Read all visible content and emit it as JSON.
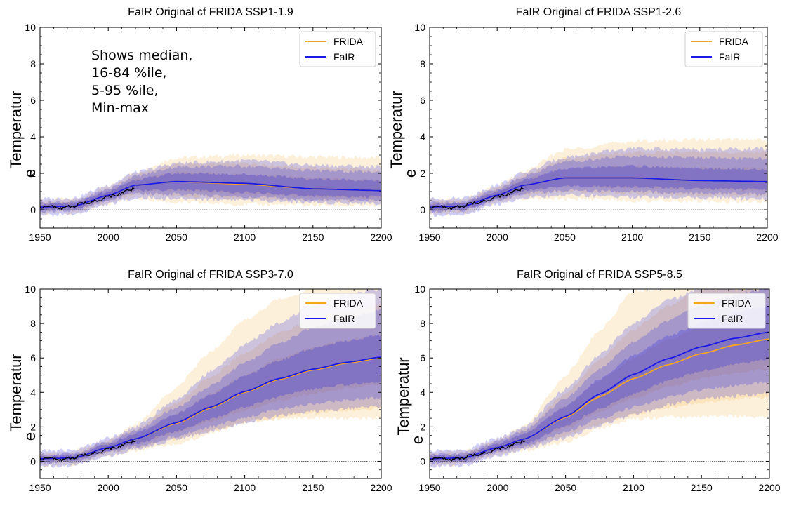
{
  "chart_data": [
    {
      "type": "area",
      "title": "FaIR Original cf FRIDA SSP1-1.9",
      "ylabel": "Temperatur\ne",
      "xlabel": "",
      "xlim": [
        1950,
        2200
      ],
      "ylim": [
        -1,
        10
      ],
      "xticks": [
        1950,
        2000,
        2050,
        2100,
        2150,
        2200
      ],
      "yticks": [
        0,
        2,
        4,
        6,
        8,
        10
      ],
      "legend": {
        "placement": "top-right",
        "entries": [
          "FRIDA",
          "FaIR"
        ]
      },
      "annotation": [
        "Shows median,",
        "16-84 %ile,",
        "5-95 %ile,",
        "Min-max"
      ],
      "series": [
        {
          "name": "FRIDA",
          "color": "#f5a623",
          "x": [
            1950,
            1975,
            2000,
            2020,
            2050,
            2100,
            2150,
            2200
          ],
          "median": [
            0.15,
            0.2,
            0.8,
            1.35,
            1.55,
            1.4,
            1.15,
            1.05
          ],
          "p16": [
            0.0,
            0.05,
            0.6,
            1.05,
            1.05,
            0.85,
            0.7,
            0.65
          ],
          "p84": [
            0.3,
            0.35,
            1.0,
            1.65,
            2.05,
            1.95,
            1.75,
            1.6
          ],
          "p5": [
            -0.1,
            -0.05,
            0.5,
            0.85,
            0.75,
            0.6,
            0.5,
            0.45
          ],
          "p95": [
            0.4,
            0.45,
            1.15,
            1.9,
            2.5,
            2.55,
            2.3,
            2.15
          ],
          "min": [
            -0.25,
            -0.2,
            0.35,
            0.6,
            0.4,
            0.3,
            0.25,
            0.2
          ],
          "max": [
            0.55,
            0.6,
            1.3,
            2.1,
            2.85,
            3.0,
            2.9,
            2.85
          ]
        },
        {
          "name": "FaIR",
          "color": "#1a1ae6",
          "x": [
            1950,
            1975,
            2000,
            2020,
            2050,
            2100,
            2150,
            2200
          ],
          "median": [
            0.15,
            0.2,
            0.8,
            1.35,
            1.55,
            1.45,
            1.15,
            1.05
          ],
          "p16": [
            0.0,
            0.05,
            0.6,
            1.05,
            1.1,
            0.95,
            0.75,
            0.7
          ],
          "p84": [
            0.3,
            0.35,
            1.0,
            1.65,
            2.0,
            1.95,
            1.7,
            1.6
          ],
          "p5": [
            -0.1,
            -0.05,
            0.5,
            0.9,
            0.85,
            0.7,
            0.55,
            0.5
          ],
          "p95": [
            0.4,
            0.45,
            1.15,
            1.85,
            2.35,
            2.4,
            2.15,
            2.05
          ],
          "min": [
            -0.3,
            -0.25,
            0.3,
            0.65,
            0.6,
            0.55,
            0.4,
            0.35
          ],
          "max": [
            0.6,
            0.65,
            1.35,
            2.05,
            2.55,
            2.7,
            2.45,
            2.35
          ]
        }
      ],
      "observed": {
        "name": "observed",
        "color": "#000000",
        "x": [
          1950,
          1955,
          1960,
          1965,
          1970,
          1975,
          1980,
          1985,
          1990,
          1995,
          2000,
          2005,
          2010,
          2015,
          2020
        ],
        "y": [
          0.1,
          0.25,
          0.15,
          0.05,
          0.2,
          0.15,
          0.4,
          0.35,
          0.5,
          0.55,
          0.75,
          0.8,
          0.9,
          1.05,
          1.2
        ]
      }
    },
    {
      "type": "area",
      "title": "FaIR Original cf FRIDA SSP1-2.6",
      "ylabel": "Temperatur\ne",
      "xlabel": "",
      "xlim": [
        1950,
        2200
      ],
      "ylim": [
        -1,
        10
      ],
      "xticks": [
        1950,
        2000,
        2050,
        2100,
        2150,
        2200
      ],
      "yticks": [
        0,
        2,
        4,
        6,
        8,
        10
      ],
      "legend": {
        "placement": "top-right",
        "entries": [
          "FRIDA",
          "FaIR"
        ]
      },
      "series": [
        {
          "name": "FRIDA",
          "color": "#f5a623",
          "x": [
            1950,
            1975,
            2000,
            2020,
            2050,
            2100,
            2150,
            2200
          ],
          "median": [
            0.15,
            0.2,
            0.8,
            1.35,
            1.75,
            1.75,
            1.6,
            1.55
          ],
          "p16": [
            0.0,
            0.05,
            0.6,
            1.05,
            1.3,
            1.2,
            1.1,
            1.05
          ],
          "p84": [
            0.3,
            0.35,
            1.0,
            1.65,
            2.25,
            2.4,
            2.3,
            2.25
          ],
          "p5": [
            -0.1,
            -0.05,
            0.5,
            0.85,
            1.0,
            0.9,
            0.8,
            0.75
          ],
          "p95": [
            0.4,
            0.45,
            1.15,
            1.9,
            2.8,
            3.15,
            3.15,
            3.15
          ],
          "min": [
            -0.25,
            -0.2,
            0.35,
            0.6,
            0.6,
            0.5,
            0.45,
            0.4
          ],
          "max": [
            0.55,
            0.6,
            1.3,
            2.1,
            3.3,
            3.75,
            3.85,
            3.85
          ]
        },
        {
          "name": "FaIR",
          "color": "#1a1ae6",
          "x": [
            1950,
            1975,
            2000,
            2020,
            2050,
            2100,
            2150,
            2200
          ],
          "median": [
            0.15,
            0.2,
            0.8,
            1.35,
            1.75,
            1.75,
            1.6,
            1.55
          ],
          "p16": [
            0.0,
            0.05,
            0.6,
            1.05,
            1.3,
            1.25,
            1.15,
            1.1
          ],
          "p84": [
            0.3,
            0.35,
            1.0,
            1.65,
            2.25,
            2.4,
            2.25,
            2.2
          ],
          "p5": [
            -0.1,
            -0.05,
            0.5,
            0.9,
            1.05,
            1.0,
            0.9,
            0.85
          ],
          "p95": [
            0.4,
            0.45,
            1.15,
            1.85,
            2.65,
            2.95,
            2.85,
            2.8
          ],
          "min": [
            -0.3,
            -0.25,
            0.3,
            0.65,
            0.8,
            0.7,
            0.65,
            0.6
          ],
          "max": [
            0.6,
            0.65,
            1.35,
            2.05,
            2.9,
            3.35,
            3.3,
            3.35
          ]
        }
      ],
      "observed": {
        "name": "observed",
        "color": "#000000",
        "x": [
          1950,
          1955,
          1960,
          1965,
          1970,
          1975,
          1980,
          1985,
          1990,
          1995,
          2000,
          2005,
          2010,
          2015,
          2020
        ],
        "y": [
          0.1,
          0.25,
          0.15,
          0.05,
          0.2,
          0.15,
          0.4,
          0.35,
          0.5,
          0.55,
          0.75,
          0.8,
          0.9,
          1.05,
          1.2
        ]
      }
    },
    {
      "type": "area",
      "title": "FaIR Original cf FRIDA SSP3-7.0",
      "ylabel": "Temperatur\ne",
      "xlabel": "",
      "xlim": [
        1950,
        2200
      ],
      "ylim": [
        -1,
        10
      ],
      "xticks": [
        1950,
        2000,
        2050,
        2100,
        2150,
        2200
      ],
      "yticks": [
        0,
        2,
        4,
        6,
        8,
        10
      ],
      "legend": {
        "placement": "top-right",
        "entries": [
          "FRIDA",
          "FaIR"
        ]
      },
      "series": [
        {
          "name": "FRIDA",
          "color": "#f5a623",
          "x": [
            1950,
            1975,
            2000,
            2020,
            2050,
            2075,
            2100,
            2125,
            2150,
            2175,
            2200
          ],
          "median": [
            0.15,
            0.2,
            0.8,
            1.3,
            2.2,
            3.1,
            4.0,
            4.75,
            5.3,
            5.7,
            6.0
          ],
          "p16": [
            0.0,
            0.05,
            0.6,
            1.0,
            1.65,
            2.3,
            2.95,
            3.5,
            3.95,
            4.25,
            4.45
          ],
          "p84": [
            0.3,
            0.35,
            1.0,
            1.6,
            2.75,
            3.9,
            5.0,
            5.95,
            6.6,
            7.05,
            7.35
          ],
          "p5": [
            -0.1,
            -0.05,
            0.5,
            0.8,
            1.3,
            1.75,
            2.2,
            2.55,
            2.8,
            2.95,
            3.05
          ],
          "p95": [
            0.4,
            0.45,
            1.15,
            1.85,
            3.4,
            4.9,
            6.3,
            7.45,
            8.25,
            8.75,
            9.1
          ],
          "min": [
            -0.25,
            -0.2,
            0.35,
            0.6,
            1.0,
            1.6,
            2.3,
            2.45,
            2.5,
            2.5,
            2.5
          ],
          "max": [
            0.55,
            0.6,
            1.3,
            2.1,
            4.3,
            6.4,
            8.2,
            9.4,
            10,
            10,
            10
          ]
        },
        {
          "name": "FaIR",
          "color": "#1a1ae6",
          "x": [
            1950,
            1975,
            2000,
            2020,
            2050,
            2075,
            2100,
            2125,
            2150,
            2175,
            2200
          ],
          "median": [
            0.15,
            0.2,
            0.8,
            1.3,
            2.25,
            3.15,
            4.05,
            4.8,
            5.35,
            5.75,
            6.05
          ],
          "p16": [
            0.0,
            0.05,
            0.6,
            1.0,
            1.75,
            2.45,
            3.15,
            3.75,
            4.2,
            4.45,
            4.6
          ],
          "p84": [
            0.3,
            0.35,
            1.0,
            1.6,
            2.75,
            3.85,
            4.95,
            5.85,
            6.55,
            7.0,
            7.35
          ],
          "p5": [
            -0.1,
            -0.05,
            0.5,
            0.85,
            1.45,
            2.0,
            2.55,
            3.0,
            3.35,
            3.55,
            3.7
          ],
          "p95": [
            0.4,
            0.45,
            1.15,
            1.8,
            3.1,
            4.4,
            5.7,
            6.85,
            7.75,
            8.35,
            8.75
          ],
          "min": [
            -0.3,
            -0.25,
            0.3,
            0.7,
            1.25,
            1.75,
            2.25,
            2.65,
            2.9,
            3.05,
            3.2
          ],
          "max": [
            0.6,
            0.65,
            1.35,
            2.0,
            3.6,
            5.2,
            6.75,
            8.05,
            9.05,
            9.7,
            10
          ]
        }
      ],
      "observed": {
        "name": "observed",
        "color": "#000000",
        "x": [
          1950,
          1955,
          1960,
          1965,
          1970,
          1975,
          1980,
          1985,
          1990,
          1995,
          2000,
          2005,
          2010,
          2015,
          2020
        ],
        "y": [
          0.1,
          0.25,
          0.15,
          0.05,
          0.2,
          0.15,
          0.4,
          0.35,
          0.5,
          0.55,
          0.75,
          0.8,
          0.9,
          1.05,
          1.2
        ]
      }
    },
    {
      "type": "area",
      "title": "FaIR Original cf FRIDA SSP5-8.5",
      "ylabel": "Temperatur\ne",
      "xlabel": "",
      "xlim": [
        1950,
        2200
      ],
      "ylim": [
        -1,
        10
      ],
      "xticks": [
        1950,
        2000,
        2050,
        2100,
        2150,
        2200
      ],
      "yticks": [
        0,
        2,
        4,
        6,
        8,
        10
      ],
      "legend": {
        "placement": "top-right",
        "entries": [
          "FRIDA",
          "FaIR"
        ]
      },
      "series": [
        {
          "name": "FRIDA",
          "color": "#f5a623",
          "x": [
            1950,
            1975,
            2000,
            2020,
            2050,
            2075,
            2100,
            2125,
            2150,
            2175,
            2200
          ],
          "median": [
            0.15,
            0.2,
            0.8,
            1.3,
            2.55,
            3.75,
            4.8,
            5.6,
            6.25,
            6.75,
            7.1
          ],
          "p16": [
            0.0,
            0.05,
            0.6,
            1.0,
            1.95,
            2.85,
            3.65,
            4.3,
            4.8,
            5.1,
            5.35
          ],
          "p84": [
            0.3,
            0.35,
            1.0,
            1.6,
            3.2,
            4.7,
            6.0,
            7.05,
            7.85,
            8.45,
            8.9
          ],
          "p5": [
            -0.1,
            -0.05,
            0.5,
            0.8,
            1.5,
            2.15,
            2.7,
            3.1,
            3.4,
            3.6,
            3.75
          ],
          "p95": [
            0.4,
            0.45,
            1.15,
            1.85,
            3.95,
            5.9,
            7.65,
            9.0,
            10,
            10,
            10
          ],
          "min": [
            -0.25,
            -0.2,
            0.35,
            0.6,
            1.1,
            1.9,
            2.45,
            2.55,
            2.6,
            2.6,
            2.6
          ],
          "max": [
            0.55,
            0.6,
            1.3,
            2.1,
            5.0,
            7.6,
            9.9,
            10,
            10,
            10,
            10
          ]
        },
        {
          "name": "FaIR",
          "color": "#1a1ae6",
          "x": [
            1950,
            1975,
            2000,
            2020,
            2050,
            2075,
            2100,
            2125,
            2150,
            2175,
            2200
          ],
          "median": [
            0.15,
            0.2,
            0.8,
            1.3,
            2.6,
            3.9,
            5.05,
            5.95,
            6.65,
            7.15,
            7.5
          ],
          "p16": [
            0.0,
            0.05,
            0.6,
            1.0,
            2.05,
            3.05,
            3.9,
            4.65,
            5.25,
            5.65,
            5.9
          ],
          "p84": [
            0.3,
            0.35,
            1.0,
            1.6,
            3.2,
            4.75,
            6.15,
            7.25,
            8.05,
            8.65,
            9.05
          ],
          "p5": [
            -0.1,
            -0.05,
            0.5,
            0.85,
            1.7,
            2.45,
            3.15,
            3.7,
            4.15,
            4.4,
            4.6
          ],
          "p95": [
            0.4,
            0.45,
            1.15,
            1.8,
            3.65,
            5.35,
            6.9,
            8.15,
            9.05,
            9.7,
            10
          ],
          "min": [
            -0.3,
            -0.25,
            0.3,
            0.7,
            1.35,
            2.05,
            2.7,
            3.25,
            3.6,
            3.8,
            3.95
          ],
          "max": [
            0.6,
            0.65,
            1.35,
            2.0,
            4.2,
            6.2,
            8.0,
            9.35,
            10,
            10,
            10
          ]
        }
      ],
      "observed": {
        "name": "observed",
        "color": "#000000",
        "x": [
          1950,
          1955,
          1960,
          1965,
          1970,
          1975,
          1980,
          1985,
          1990,
          1995,
          2000,
          2005,
          2010,
          2015,
          2020
        ],
        "y": [
          0.1,
          0.25,
          0.15,
          0.05,
          0.2,
          0.15,
          0.4,
          0.35,
          0.5,
          0.55,
          0.75,
          0.8,
          0.9,
          1.05,
          1.2
        ]
      }
    }
  ]
}
